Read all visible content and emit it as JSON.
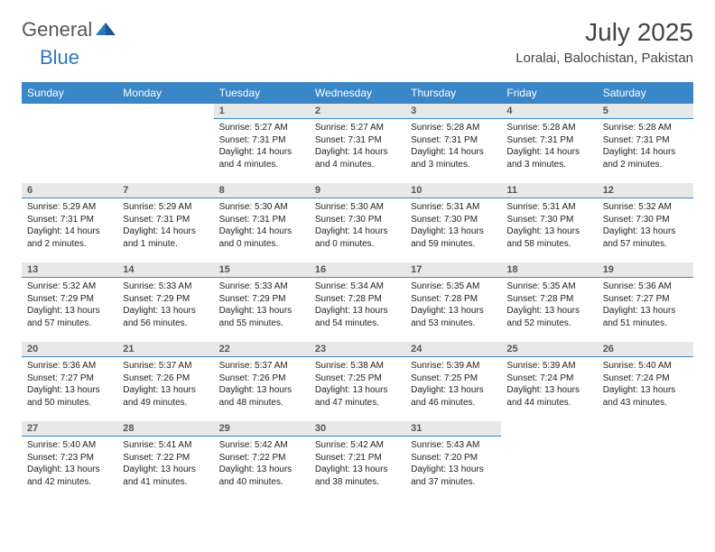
{
  "brand": {
    "word1": "General",
    "word2": "Blue"
  },
  "title": "July 2025",
  "location": "Loralai, Balochistan, Pakistan",
  "colors": {
    "header_bg": "#3a87c8",
    "header_fg": "#ffffff",
    "daynum_bg": "#e8e8e8",
    "day_border": "#3a87c8",
    "brand_gray": "#585858",
    "brand_blue": "#2d78bd"
  },
  "weekdays": [
    "Sunday",
    "Monday",
    "Tuesday",
    "Wednesday",
    "Thursday",
    "Friday",
    "Saturday"
  ],
  "weeks": [
    [
      null,
      null,
      {
        "n": "1",
        "sr": "Sunrise: 5:27 AM",
        "ss": "Sunset: 7:31 PM",
        "dl": "Daylight: 14 hours and 4 minutes."
      },
      {
        "n": "2",
        "sr": "Sunrise: 5:27 AM",
        "ss": "Sunset: 7:31 PM",
        "dl": "Daylight: 14 hours and 4 minutes."
      },
      {
        "n": "3",
        "sr": "Sunrise: 5:28 AM",
        "ss": "Sunset: 7:31 PM",
        "dl": "Daylight: 14 hours and 3 minutes."
      },
      {
        "n": "4",
        "sr": "Sunrise: 5:28 AM",
        "ss": "Sunset: 7:31 PM",
        "dl": "Daylight: 14 hours and 3 minutes."
      },
      {
        "n": "5",
        "sr": "Sunrise: 5:28 AM",
        "ss": "Sunset: 7:31 PM",
        "dl": "Daylight: 14 hours and 2 minutes."
      }
    ],
    [
      {
        "n": "6",
        "sr": "Sunrise: 5:29 AM",
        "ss": "Sunset: 7:31 PM",
        "dl": "Daylight: 14 hours and 2 minutes."
      },
      {
        "n": "7",
        "sr": "Sunrise: 5:29 AM",
        "ss": "Sunset: 7:31 PM",
        "dl": "Daylight: 14 hours and 1 minute."
      },
      {
        "n": "8",
        "sr": "Sunrise: 5:30 AM",
        "ss": "Sunset: 7:31 PM",
        "dl": "Daylight: 14 hours and 0 minutes."
      },
      {
        "n": "9",
        "sr": "Sunrise: 5:30 AM",
        "ss": "Sunset: 7:30 PM",
        "dl": "Daylight: 14 hours and 0 minutes."
      },
      {
        "n": "10",
        "sr": "Sunrise: 5:31 AM",
        "ss": "Sunset: 7:30 PM",
        "dl": "Daylight: 13 hours and 59 minutes."
      },
      {
        "n": "11",
        "sr": "Sunrise: 5:31 AM",
        "ss": "Sunset: 7:30 PM",
        "dl": "Daylight: 13 hours and 58 minutes."
      },
      {
        "n": "12",
        "sr": "Sunrise: 5:32 AM",
        "ss": "Sunset: 7:30 PM",
        "dl": "Daylight: 13 hours and 57 minutes."
      }
    ],
    [
      {
        "n": "13",
        "sr": "Sunrise: 5:32 AM",
        "ss": "Sunset: 7:29 PM",
        "dl": "Daylight: 13 hours and 57 minutes."
      },
      {
        "n": "14",
        "sr": "Sunrise: 5:33 AM",
        "ss": "Sunset: 7:29 PM",
        "dl": "Daylight: 13 hours and 56 minutes."
      },
      {
        "n": "15",
        "sr": "Sunrise: 5:33 AM",
        "ss": "Sunset: 7:29 PM",
        "dl": "Daylight: 13 hours and 55 minutes."
      },
      {
        "n": "16",
        "sr": "Sunrise: 5:34 AM",
        "ss": "Sunset: 7:28 PM",
        "dl": "Daylight: 13 hours and 54 minutes."
      },
      {
        "n": "17",
        "sr": "Sunrise: 5:35 AM",
        "ss": "Sunset: 7:28 PM",
        "dl": "Daylight: 13 hours and 53 minutes."
      },
      {
        "n": "18",
        "sr": "Sunrise: 5:35 AM",
        "ss": "Sunset: 7:28 PM",
        "dl": "Daylight: 13 hours and 52 minutes."
      },
      {
        "n": "19",
        "sr": "Sunrise: 5:36 AM",
        "ss": "Sunset: 7:27 PM",
        "dl": "Daylight: 13 hours and 51 minutes."
      }
    ],
    [
      {
        "n": "20",
        "sr": "Sunrise: 5:36 AM",
        "ss": "Sunset: 7:27 PM",
        "dl": "Daylight: 13 hours and 50 minutes."
      },
      {
        "n": "21",
        "sr": "Sunrise: 5:37 AM",
        "ss": "Sunset: 7:26 PM",
        "dl": "Daylight: 13 hours and 49 minutes."
      },
      {
        "n": "22",
        "sr": "Sunrise: 5:37 AM",
        "ss": "Sunset: 7:26 PM",
        "dl": "Daylight: 13 hours and 48 minutes."
      },
      {
        "n": "23",
        "sr": "Sunrise: 5:38 AM",
        "ss": "Sunset: 7:25 PM",
        "dl": "Daylight: 13 hours and 47 minutes."
      },
      {
        "n": "24",
        "sr": "Sunrise: 5:39 AM",
        "ss": "Sunset: 7:25 PM",
        "dl": "Daylight: 13 hours and 46 minutes."
      },
      {
        "n": "25",
        "sr": "Sunrise: 5:39 AM",
        "ss": "Sunset: 7:24 PM",
        "dl": "Daylight: 13 hours and 44 minutes."
      },
      {
        "n": "26",
        "sr": "Sunrise: 5:40 AM",
        "ss": "Sunset: 7:24 PM",
        "dl": "Daylight: 13 hours and 43 minutes."
      }
    ],
    [
      {
        "n": "27",
        "sr": "Sunrise: 5:40 AM",
        "ss": "Sunset: 7:23 PM",
        "dl": "Daylight: 13 hours and 42 minutes."
      },
      {
        "n": "28",
        "sr": "Sunrise: 5:41 AM",
        "ss": "Sunset: 7:22 PM",
        "dl": "Daylight: 13 hours and 41 minutes."
      },
      {
        "n": "29",
        "sr": "Sunrise: 5:42 AM",
        "ss": "Sunset: 7:22 PM",
        "dl": "Daylight: 13 hours and 40 minutes."
      },
      {
        "n": "30",
        "sr": "Sunrise: 5:42 AM",
        "ss": "Sunset: 7:21 PM",
        "dl": "Daylight: 13 hours and 38 minutes."
      },
      {
        "n": "31",
        "sr": "Sunrise: 5:43 AM",
        "ss": "Sunset: 7:20 PM",
        "dl": "Daylight: 13 hours and 37 minutes."
      },
      null,
      null
    ]
  ]
}
